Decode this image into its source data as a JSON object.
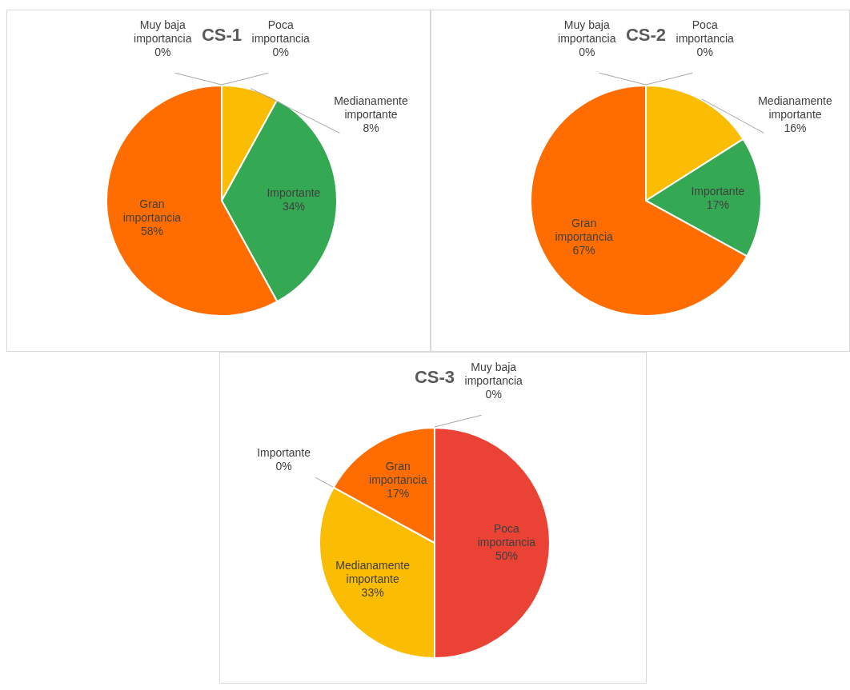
{
  "chart_data": [
    {
      "type": "pie",
      "title": "CS-1",
      "categories": [
        "Muy baja importancia",
        "Poca importancia",
        "Medianamente importante",
        "Importante",
        "Gran importancia"
      ],
      "values": [
        0,
        0,
        8,
        34,
        58
      ],
      "colors": [
        "#4285f4",
        "#ea4335",
        "#fbbc04",
        "#34a853",
        "#ff6d01"
      ],
      "value_labels": [
        "0%",
        "0%",
        "8%",
        "34%",
        "58%"
      ]
    },
    {
      "type": "pie",
      "title": "CS-2",
      "categories": [
        "Muy baja importancia",
        "Poca importancia",
        "Medianamente importante",
        "Importante",
        "Gran importancia"
      ],
      "values": [
        0,
        0,
        16,
        17,
        67
      ],
      "colors": [
        "#4285f4",
        "#ea4335",
        "#fbbc04",
        "#34a853",
        "#ff6d01"
      ],
      "value_labels": [
        "0%",
        "0%",
        "16%",
        "17%",
        "67%"
      ]
    },
    {
      "type": "pie",
      "title": "CS-3",
      "categories": [
        "Muy baja importancia",
        "Poca importancia",
        "Medianamente importante",
        "Importante",
        "Gran importancia"
      ],
      "values": [
        0,
        50,
        33,
        0,
        17
      ],
      "colors": [
        "#4285f4",
        "#ea4335",
        "#fbbc04",
        "#34a853",
        "#ff6d01"
      ],
      "value_labels": [
        "0%",
        "50%",
        "33%",
        "0%",
        "17%"
      ]
    }
  ]
}
